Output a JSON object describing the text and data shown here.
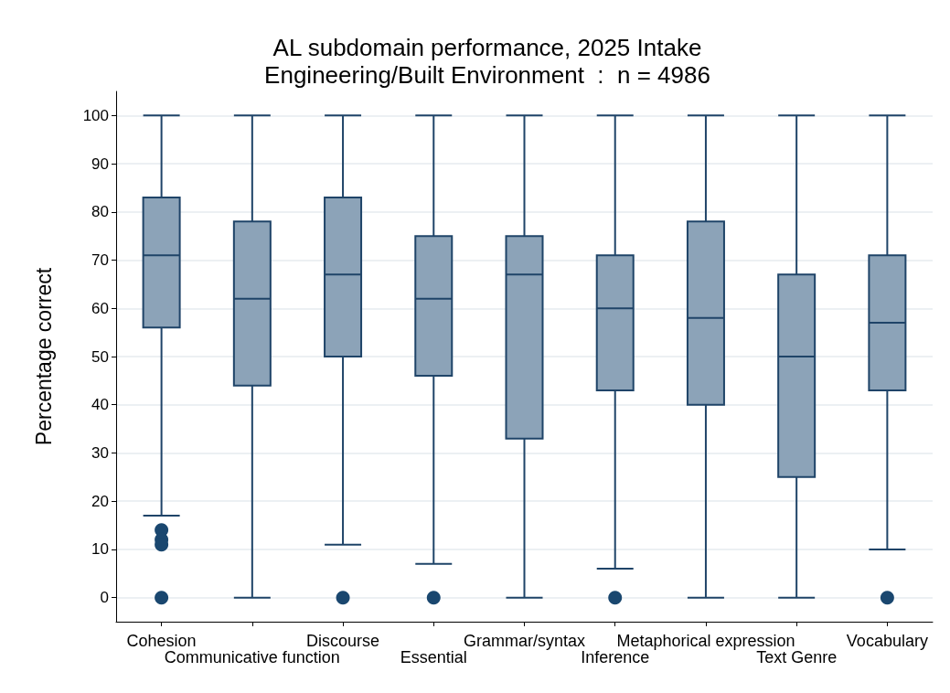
{
  "chart_data": {
    "type": "box",
    "title": "AL subdomain performance, 2025 Intake",
    "subtitle": "Engineering/Built Environment  :  n = 4986",
    "ylabel": "Percentage correct",
    "categories": [
      "Cohesion",
      "Communicative function",
      "Discourse",
      "Essential",
      "Grammar/syntax",
      "Inference",
      "Metaphorical expression",
      "Text Genre",
      "Vocabulary"
    ],
    "color": "#8ca3b8",
    "boxes": [
      {
        "low": 17,
        "q1": 56,
        "median": 71,
        "q3": 83,
        "high": 100,
        "outliers": [
          14,
          12,
          11,
          0
        ]
      },
      {
        "low": 0,
        "q1": 44,
        "median": 62,
        "q3": 78,
        "high": 100
      },
      {
        "low": 11,
        "q1": 50,
        "median": 67,
        "q3": 83,
        "high": 100,
        "outliers": [
          0
        ]
      },
      {
        "low": 7,
        "q1": 46,
        "median": 62,
        "q3": 75,
        "high": 100,
        "outliers": [
          0
        ]
      },
      {
        "low": 0,
        "q1": 33,
        "median": 67,
        "q3": 75,
        "high": 100
      },
      {
        "low": 6,
        "q1": 43,
        "median": 60,
        "q3": 71,
        "high": 100,
        "outliers": [
          0
        ]
      },
      {
        "low": 0,
        "q1": 40,
        "median": 58,
        "q3": 78,
        "high": 100
      },
      {
        "low": 0,
        "q1": 25,
        "median": 50,
        "q3": 67,
        "high": 100
      },
      {
        "low": 10,
        "q1": 43,
        "median": 57,
        "q3": 71,
        "high": 100,
        "outliers": [
          0
        ]
      }
    ],
    "ylim": [
      -5,
      105
    ],
    "yticks": [
      0,
      10,
      20,
      30,
      40,
      50,
      60,
      70,
      80,
      90,
      100
    ],
    "grid": "y"
  }
}
